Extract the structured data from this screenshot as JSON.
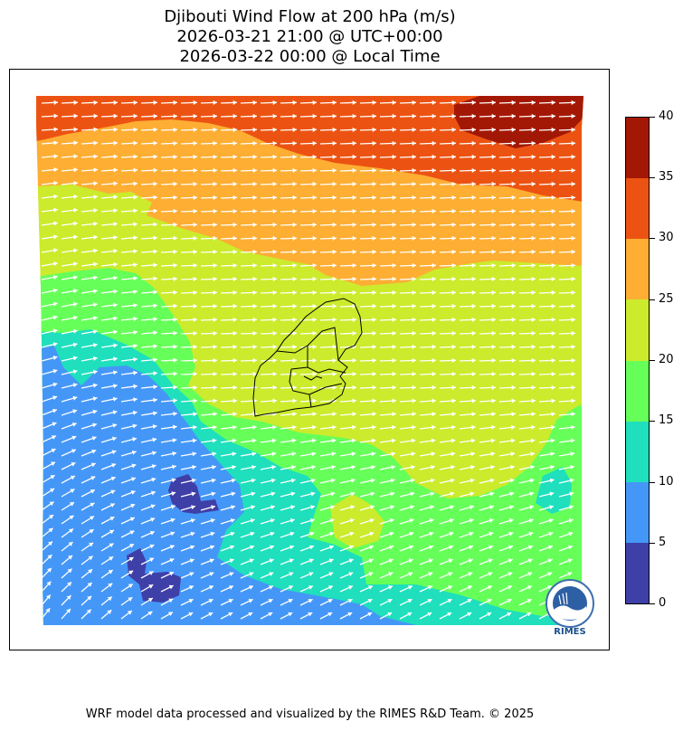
{
  "title": {
    "line1": "Djibouti Wind Flow at 200 hPa (m/s)",
    "line2": "2026-03-21 21:00 @ UTC+00:00",
    "line3": "2026-03-22 00:00 @ Local Time"
  },
  "colorbar": {
    "ticks": [
      "0",
      "5",
      "10",
      "15",
      "20",
      "25",
      "30",
      "35",
      "40"
    ],
    "colors": [
      "#3f3fa8",
      "#4597f7",
      "#1fdfbd",
      "#66ff59",
      "#cbeb2c",
      "#fdae33",
      "#ec5312",
      "#a31804"
    ],
    "levels_ms": [
      0,
      5,
      10,
      15,
      20,
      25,
      30,
      35,
      40
    ]
  },
  "map": {
    "region": "Djibouti",
    "level": "200 hPa",
    "vector_color": "#ffffff",
    "boundary_color": "#000000"
  },
  "logo": {
    "text": "RIMES"
  },
  "footer": "WRF model data processed and visualized by the RIMES R&D Team. © 2025"
}
